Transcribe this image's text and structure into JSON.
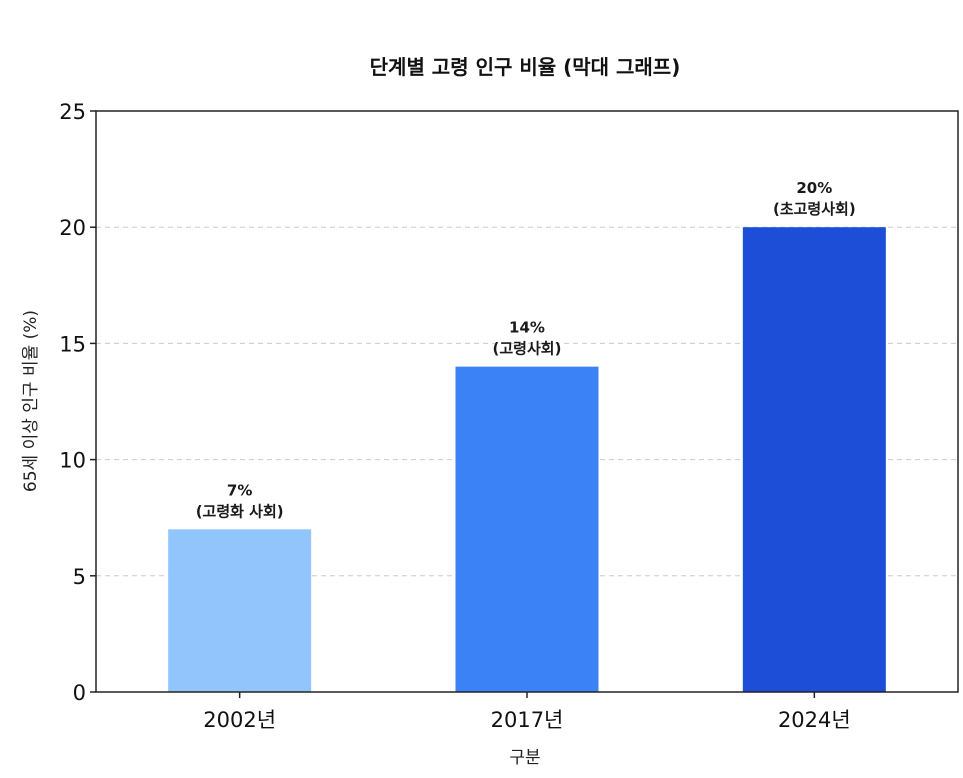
{
  "chart_data": {
    "type": "bar",
    "title": "단계별 고령 인구 비율 (막대 그래프)",
    "xlabel": "구분",
    "ylabel": "65세 이상 인구 비율 (%)",
    "categories": [
      "2002년",
      "2017년",
      "2024년"
    ],
    "values": [
      7,
      14,
      20
    ],
    "data_labels": [
      [
        "7%",
        "(고령화 사회)"
      ],
      [
        "14%",
        "(고령사회)"
      ],
      [
        "20%",
        "(초고령사회)"
      ]
    ],
    "colors": [
      "#93c5fd",
      "#3b82f6",
      "#1d4ed8"
    ],
    "ylim": [
      0,
      25
    ],
    "yticks": [
      0,
      5,
      10,
      15,
      20,
      25
    ],
    "grid": "horizontal dashed"
  }
}
